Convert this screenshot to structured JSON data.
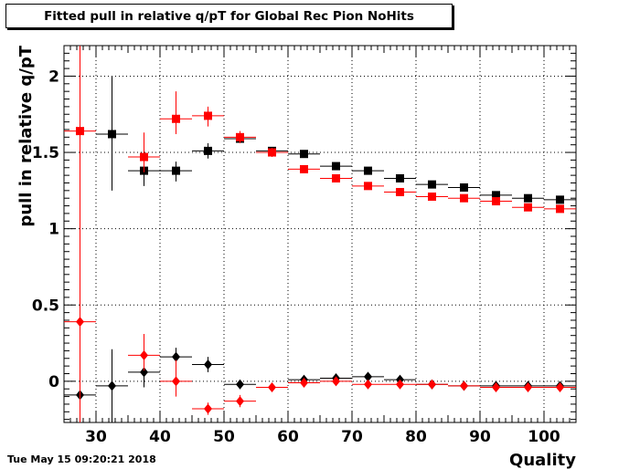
{
  "title": "Fitted pull in relative q/pT for Global Rec Pion NoHits",
  "timestamp": "Tue May 15 09:20:21 2018",
  "chart_data": {
    "type": "scatter",
    "title": "Fitted pull in relative q/pT for Global Rec Pion NoHits",
    "xlabel": "Quality",
    "ylabel": "pull in relative q/pT",
    "xlim": [
      25,
      105
    ],
    "ylim": [
      -0.27,
      2.2
    ],
    "grid": true,
    "x_ticks": [
      30,
      40,
      50,
      60,
      70,
      80,
      90,
      100
    ],
    "y_ticks": [
      0,
      0.5,
      1,
      1.5,
      2
    ],
    "x_tick_labels": [
      "30",
      "40",
      "50",
      "60",
      "70",
      "80",
      "90",
      "100"
    ],
    "y_tick_labels": [
      "0",
      "0.5",
      "1",
      "1.5",
      "2"
    ],
    "series": [
      {
        "marker": "square",
        "color": "#000000",
        "points": [
          {
            "x": 32.5,
            "y": 1.62,
            "yerr_lo": 0.37,
            "yerr_hi": 0.38
          },
          {
            "x": 37.5,
            "y": 1.38,
            "yerr_lo": 0.1,
            "yerr_hi": 0.06
          },
          {
            "x": 42.5,
            "y": 1.38,
            "yerr_lo": 0.07,
            "yerr_hi": 0.06
          },
          {
            "x": 47.5,
            "y": 1.51,
            "yerr_lo": 0.05,
            "yerr_hi": 0.05
          },
          {
            "x": 52.5,
            "y": 1.59,
            "yerr_lo": 0.03,
            "yerr_hi": 0.03
          },
          {
            "x": 57.5,
            "y": 1.51,
            "yerr_lo": 0.02,
            "yerr_hi": 0.02
          },
          {
            "x": 62.5,
            "y": 1.49,
            "yerr_lo": 0.02,
            "yerr_hi": 0.02
          },
          {
            "x": 67.5,
            "y": 1.41,
            "yerr_lo": 0.01,
            "yerr_hi": 0.01
          },
          {
            "x": 72.5,
            "y": 1.38,
            "yerr_lo": 0.01,
            "yerr_hi": 0.01
          },
          {
            "x": 77.5,
            "y": 1.33,
            "yerr_lo": 0.01,
            "yerr_hi": 0.01
          },
          {
            "x": 82.5,
            "y": 1.29,
            "yerr_lo": 0.01,
            "yerr_hi": 0.01
          },
          {
            "x": 87.5,
            "y": 1.27,
            "yerr_lo": 0.01,
            "yerr_hi": 0.01
          },
          {
            "x": 92.5,
            "y": 1.22,
            "yerr_lo": 0.01,
            "yerr_hi": 0.01
          },
          {
            "x": 97.5,
            "y": 1.2,
            "yerr_lo": 0.01,
            "yerr_hi": 0.01
          },
          {
            "x": 102.5,
            "y": 1.19,
            "yerr_lo": 0.01,
            "yerr_hi": 0.01
          }
        ]
      },
      {
        "marker": "square",
        "color": "#ff0000",
        "points": [
          {
            "x": 27.5,
            "y": 1.64,
            "yerr_lo": 1.91,
            "yerr_hi": 0.6
          },
          {
            "x": 37.5,
            "y": 1.47,
            "yerr_lo": 0.1,
            "yerr_hi": 0.16
          },
          {
            "x": 42.5,
            "y": 1.72,
            "yerr_lo": 0.1,
            "yerr_hi": 0.18
          },
          {
            "x": 47.5,
            "y": 1.74,
            "yerr_lo": 0.07,
            "yerr_hi": 0.06
          },
          {
            "x": 52.5,
            "y": 1.6,
            "yerr_lo": 0.04,
            "yerr_hi": 0.04
          },
          {
            "x": 57.5,
            "y": 1.5,
            "yerr_lo": 0.03,
            "yerr_hi": 0.03
          },
          {
            "x": 62.5,
            "y": 1.39,
            "yerr_lo": 0.02,
            "yerr_hi": 0.02
          },
          {
            "x": 67.5,
            "y": 1.33,
            "yerr_lo": 0.02,
            "yerr_hi": 0.02
          },
          {
            "x": 72.5,
            "y": 1.28,
            "yerr_lo": 0.01,
            "yerr_hi": 0.01
          },
          {
            "x": 77.5,
            "y": 1.24,
            "yerr_lo": 0.01,
            "yerr_hi": 0.01
          },
          {
            "x": 82.5,
            "y": 1.21,
            "yerr_lo": 0.01,
            "yerr_hi": 0.01
          },
          {
            "x": 87.5,
            "y": 1.2,
            "yerr_lo": 0.01,
            "yerr_hi": 0.01
          },
          {
            "x": 92.5,
            "y": 1.18,
            "yerr_lo": 0.01,
            "yerr_hi": 0.01
          },
          {
            "x": 97.5,
            "y": 1.14,
            "yerr_lo": 0.01,
            "yerr_hi": 0.01
          },
          {
            "x": 102.5,
            "y": 1.13,
            "yerr_lo": 0.01,
            "yerr_hi": 0.01
          }
        ]
      },
      {
        "marker": "diamond",
        "color": "#000000",
        "points": [
          {
            "x": 27.5,
            "y": -0.09,
            "yerr_lo": 0.01,
            "yerr_hi": 0.01
          },
          {
            "x": 32.5,
            "y": -0.03,
            "yerr_lo": 0.27,
            "yerr_hi": 0.24
          },
          {
            "x": 37.5,
            "y": 0.06,
            "yerr_lo": 0.1,
            "yerr_hi": 0.06
          },
          {
            "x": 42.5,
            "y": 0.16,
            "yerr_lo": 0.06,
            "yerr_hi": 0.06
          },
          {
            "x": 47.5,
            "y": 0.11,
            "yerr_lo": 0.05,
            "yerr_hi": 0.05
          },
          {
            "x": 52.5,
            "y": -0.02,
            "yerr_lo": 0.03,
            "yerr_hi": 0.03
          },
          {
            "x": 62.5,
            "y": 0.01,
            "yerr_lo": 0.01,
            "yerr_hi": 0.01
          },
          {
            "x": 67.5,
            "y": 0.02,
            "yerr_lo": 0.01,
            "yerr_hi": 0.01
          },
          {
            "x": 72.5,
            "y": 0.03,
            "yerr_lo": 0.01,
            "yerr_hi": 0.01
          },
          {
            "x": 77.5,
            "y": 0.01,
            "yerr_lo": 0.01,
            "yerr_hi": 0.01
          },
          {
            "x": 82.5,
            "y": -0.02,
            "yerr_lo": 0.01,
            "yerr_hi": 0.01
          },
          {
            "x": 87.5,
            "y": -0.03,
            "yerr_lo": 0.01,
            "yerr_hi": 0.01
          },
          {
            "x": 92.5,
            "y": -0.03,
            "yerr_lo": 0.01,
            "yerr_hi": 0.01
          },
          {
            "x": 97.5,
            "y": -0.03,
            "yerr_lo": 0.01,
            "yerr_hi": 0.01
          },
          {
            "x": 102.5,
            "y": -0.03,
            "yerr_lo": 0.01,
            "yerr_hi": 0.01
          }
        ]
      },
      {
        "marker": "diamond",
        "color": "#ff0000",
        "points": [
          {
            "x": 27.5,
            "y": 0.39,
            "yerr_lo": 0.66,
            "yerr_hi": 1.81
          },
          {
            "x": 37.5,
            "y": 0.17,
            "yerr_lo": 0.1,
            "yerr_hi": 0.14
          },
          {
            "x": 42.5,
            "y": 0.0,
            "yerr_lo": 0.1,
            "yerr_hi": 0.14
          },
          {
            "x": 47.5,
            "y": -0.18,
            "yerr_lo": 0.04,
            "yerr_hi": 0.04
          },
          {
            "x": 52.5,
            "y": -0.13,
            "yerr_lo": 0.04,
            "yerr_hi": 0.04
          },
          {
            "x": 57.5,
            "y": -0.04,
            "yerr_lo": 0.01,
            "yerr_hi": 0.01
          },
          {
            "x": 62.5,
            "y": -0.01,
            "yerr_lo": 0.02,
            "yerr_hi": 0.02
          },
          {
            "x": 67.5,
            "y": 0.0,
            "yerr_lo": 0.02,
            "yerr_hi": 0.02
          },
          {
            "x": 72.5,
            "y": -0.02,
            "yerr_lo": 0.01,
            "yerr_hi": 0.01
          },
          {
            "x": 77.5,
            "y": -0.02,
            "yerr_lo": 0.01,
            "yerr_hi": 0.01
          },
          {
            "x": 82.5,
            "y": -0.02,
            "yerr_lo": 0.01,
            "yerr_hi": 0.01
          },
          {
            "x": 87.5,
            "y": -0.03,
            "yerr_lo": 0.01,
            "yerr_hi": 0.01
          },
          {
            "x": 92.5,
            "y": -0.04,
            "yerr_lo": 0.01,
            "yerr_hi": 0.01
          },
          {
            "x": 97.5,
            "y": -0.04,
            "yerr_lo": 0.01,
            "yerr_hi": 0.01
          },
          {
            "x": 102.5,
            "y": -0.04,
            "yerr_lo": 0.01,
            "yerr_hi": 0.01
          }
        ]
      }
    ]
  }
}
